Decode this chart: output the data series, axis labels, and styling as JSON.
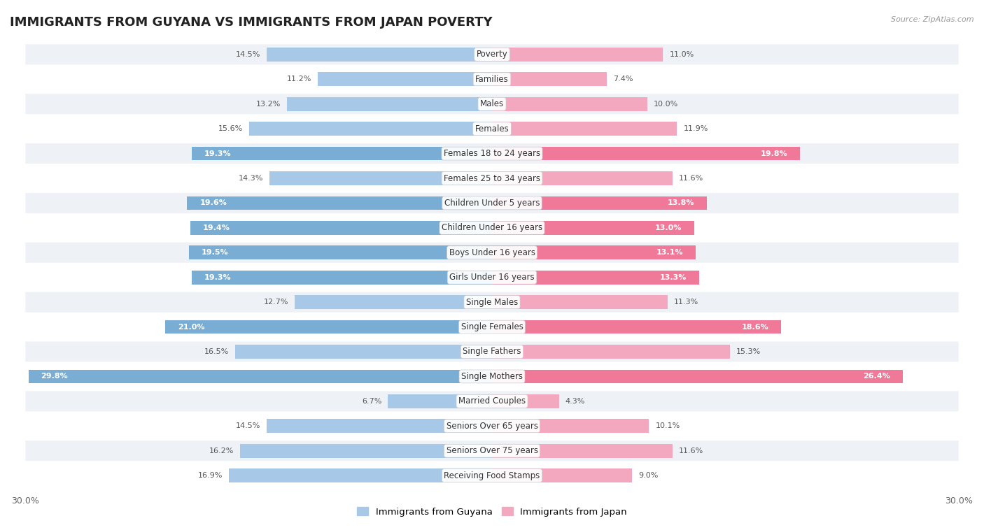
{
  "title": "IMMIGRANTS FROM GUYANA VS IMMIGRANTS FROM JAPAN POVERTY",
  "source": "Source: ZipAtlas.com",
  "categories": [
    "Poverty",
    "Families",
    "Males",
    "Females",
    "Females 18 to 24 years",
    "Females 25 to 34 years",
    "Children Under 5 years",
    "Children Under 16 years",
    "Boys Under 16 years",
    "Girls Under 16 years",
    "Single Males",
    "Single Females",
    "Single Fathers",
    "Single Mothers",
    "Married Couples",
    "Seniors Over 65 years",
    "Seniors Over 75 years",
    "Receiving Food Stamps"
  ],
  "guyana_values": [
    14.5,
    11.2,
    13.2,
    15.6,
    19.3,
    14.3,
    19.6,
    19.4,
    19.5,
    19.3,
    12.7,
    21.0,
    16.5,
    29.8,
    6.7,
    14.5,
    16.2,
    16.9
  ],
  "japan_values": [
    11.0,
    7.4,
    10.0,
    11.9,
    19.8,
    11.6,
    13.8,
    13.0,
    13.1,
    13.3,
    11.3,
    18.6,
    15.3,
    26.4,
    4.3,
    10.1,
    11.6,
    9.0
  ],
  "guyana_color_light": "#a8c8e8",
  "guyana_color_dark": "#7aadd4",
  "japan_color_light": "#f4a8c0",
  "japan_color_dark": "#f07898",
  "highlight_rows": [
    4,
    6,
    7,
    8,
    9,
    11,
    13
  ],
  "background_color": "#ffffff",
  "row_bg_light": "#eef2f7",
  "row_bg_white": "#ffffff",
  "max_value": 30.0,
  "legend_guyana": "Immigrants from Guyana",
  "legend_japan": "Immigrants from Japan",
  "title_fontsize": 13,
  "label_fontsize": 8.5,
  "value_fontsize": 8.0
}
